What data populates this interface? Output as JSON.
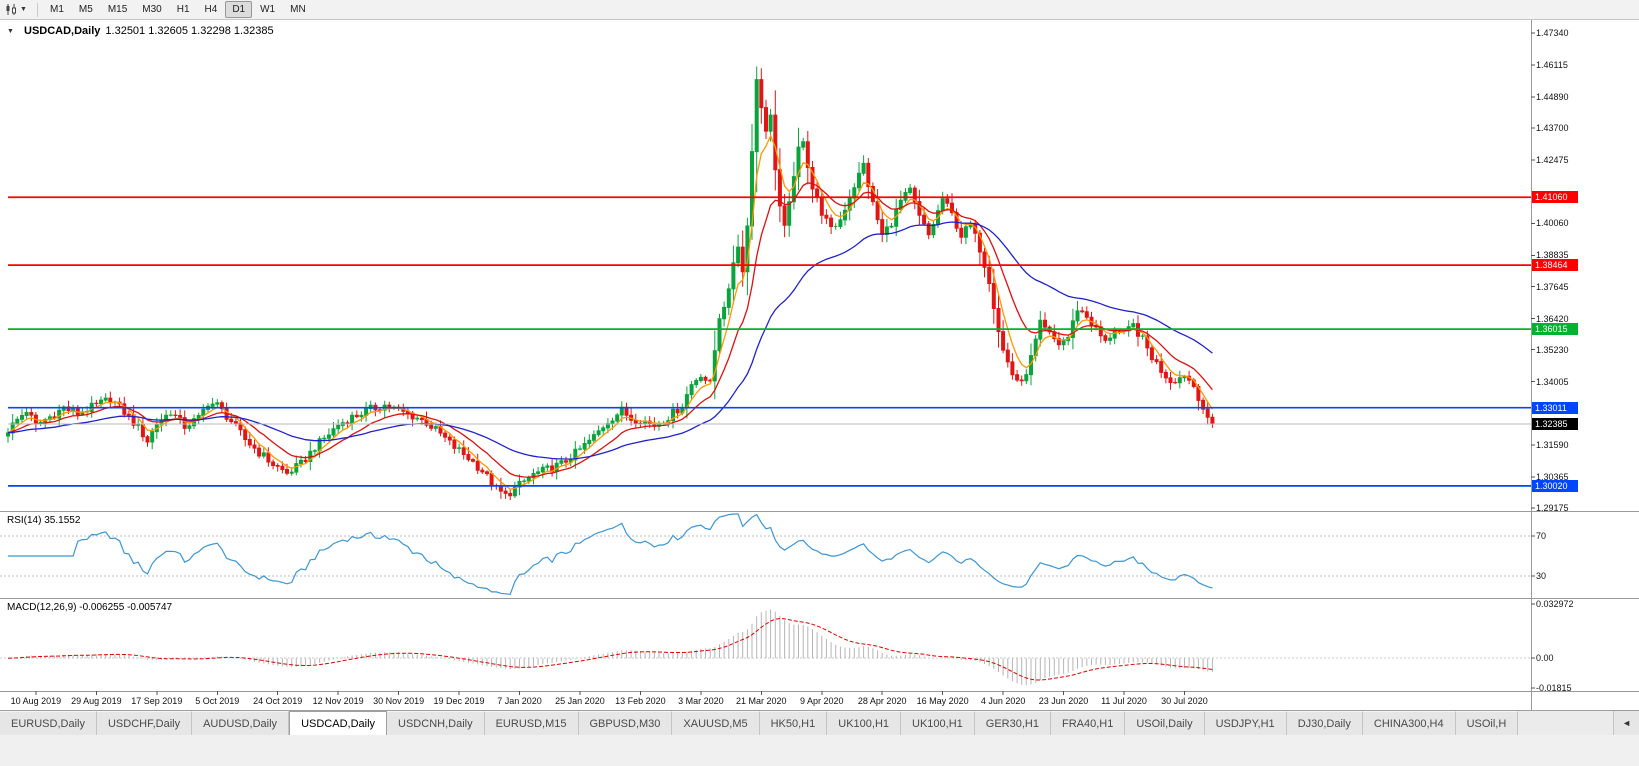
{
  "toolbar": {
    "dropdown_glyph": "▼",
    "timeframes": [
      {
        "label": "M1"
      },
      {
        "label": "M5"
      },
      {
        "label": "M15"
      },
      {
        "label": "M30"
      },
      {
        "label": "H1"
      },
      {
        "label": "H4"
      },
      {
        "label": "D1",
        "active": true
      },
      {
        "label": "W1"
      },
      {
        "label": "MN"
      }
    ]
  },
  "chart": {
    "collapse_icon": "▼",
    "symbol": "USDCAD,Daily",
    "ohlc": "1.32501 1.32605 1.32298 1.32385",
    "open": "1.32501",
    "high": "1.32605",
    "low": "1.32298",
    "close": "1.32385"
  },
  "indicators": {
    "rsi": {
      "name": "RSI(14)",
      "value": "35.1552",
      "levels": [
        {
          "text": "70",
          "value": 70
        },
        {
          "text": "30",
          "value": 30
        }
      ],
      "line_color": "#3c96d2"
    },
    "macd": {
      "name": "MACD(12,26,9)",
      "values": "-0.006255 -0.005747",
      "axis_labels": [
        {
          "text": "0.032972",
          "value": 0.032972
        },
        {
          "text": "0.00",
          "value": 0
        },
        {
          "text": "-0.01815",
          "value": -0.01815
        }
      ],
      "histogram_color": "#b5b5b5",
      "signal_color": "#e00000"
    }
  },
  "price_axis": {
    "ticks": [
      {
        "text": "1.47340",
        "price": 1.4734
      },
      {
        "text": "1.46115",
        "price": 1.46115
      },
      {
        "text": "1.44890",
        "price": 1.4489
      },
      {
        "text": "1.43700",
        "price": 1.437
      },
      {
        "text": "1.42475",
        "price": 1.42475
      },
      {
        "text": "1.40060",
        "price": 1.4006
      },
      {
        "text": "1.38835",
        "price": 1.38835
      },
      {
        "text": "1.37645",
        "price": 1.37645
      },
      {
        "text": "1.36420",
        "price": 1.3642
      },
      {
        "text": "1.35230",
        "price": 1.3523
      },
      {
        "text": "1.34005",
        "price": 1.34005
      },
      {
        "text": "1.31590",
        "price": 1.3159
      },
      {
        "text": "1.30365",
        "price": 1.30365
      },
      {
        "text": "1.29175",
        "price": 1.29175
      }
    ]
  },
  "date_axis": {
    "labels": [
      {
        "text": "10 Aug 2019",
        "day": 6
      },
      {
        "text": "29 Aug 2019",
        "day": 19
      },
      {
        "text": "17 Sep 2019",
        "day": 32
      },
      {
        "text": "5 Oct 2019",
        "day": 45
      },
      {
        "text": "24 Oct 2019",
        "day": 58
      },
      {
        "text": "12 Nov 2019",
        "day": 71
      },
      {
        "text": "30 Nov 2019",
        "day": 84
      },
      {
        "text": "19 Dec 2019",
        "day": 97
      },
      {
        "text": "7 Jan 2020",
        "day": 110
      },
      {
        "text": "25 Jan 2020",
        "day": 123
      },
      {
        "text": "13 Feb 2020",
        "day": 136
      },
      {
        "text": "3 Mar 2020",
        "day": 149
      },
      {
        "text": "21 Mar 2020",
        "day": 162
      },
      {
        "text": "9 Apr 2020",
        "day": 175
      },
      {
        "text": "28 Apr 2020",
        "day": 188
      },
      {
        "text": "16 May 2020",
        "day": 201
      },
      {
        "text": "4 Jun 2020",
        "day": 214
      },
      {
        "text": "23 Jun 2020",
        "day": 227
      },
      {
        "text": "11 Jul 2020",
        "day": 240
      },
      {
        "text": "30 Jul 2020",
        "day": 253
      }
    ]
  },
  "tabs": {
    "scroll_left_icon": "◄",
    "items": [
      {
        "label": "EURUSD,Daily"
      },
      {
        "label": "USDCHF,Daily"
      },
      {
        "label": "AUDUSD,Daily"
      },
      {
        "label": "USDCAD,Daily",
        "active": true
      },
      {
        "label": "USDCNH,Daily"
      },
      {
        "label": "EURUSD,M15"
      },
      {
        "label": "GBPUSD,M30"
      },
      {
        "label": "XAUUSD,M5"
      },
      {
        "label": "HK50,H1"
      },
      {
        "label": "UK100,H1"
      },
      {
        "label": "UK100,H1"
      },
      {
        "label": "GER30,H1"
      },
      {
        "label": "FRA40,H1"
      },
      {
        "label": "USOil,Daily"
      },
      {
        "label": "USDJPY,H1"
      },
      {
        "label": "DJ30,Daily"
      },
      {
        "label": "CHINA300,H4"
      },
      {
        "label": "USOil,H"
      }
    ]
  },
  "chart_data": {
    "type": "candlestick",
    "symbol": "USDCAD",
    "timeframe": "Daily",
    "x_range": [
      "Aug 2019",
      "Aug 2020"
    ],
    "y_range": [
      1.2898,
      1.4765
    ],
    "x_labels": [
      "10 Aug 2019",
      "29 Aug 2019",
      "17 Sep 2019",
      "5 Oct 2019",
      "24 Oct 2019",
      "12 Nov 2019",
      "30 Nov 2019",
      "19 Dec 2019",
      "7 Jan 2020",
      "25 Jan 2020",
      "13 Feb 2020",
      "3 Mar 2020",
      "21 Mar 2020",
      "9 Apr 2020",
      "28 Apr 2020",
      "16 May 2020",
      "4 Jun 2020",
      "23 Jun 2020",
      "11 Jul 2020",
      "30 Jul 2020"
    ],
    "y_ticks": [
      1.4734,
      1.46115,
      1.4489,
      1.437,
      1.42475,
      1.4006,
      1.38835,
      1.37645,
      1.3642,
      1.3523,
      1.34005,
      1.3159,
      1.30365,
      1.29175
    ],
    "candle_count": 260,
    "up_color": "#0aa33c",
    "down_color": "#e01616",
    "close_anchors": [
      [
        0,
        1.3215
      ],
      [
        2,
        1.3255
      ],
      [
        4,
        1.329
      ],
      [
        6,
        1.3235
      ],
      [
        9,
        1.3265
      ],
      [
        12,
        1.33
      ],
      [
        15,
        1.328
      ],
      [
        19,
        1.331
      ],
      [
        22,
        1.3335
      ],
      [
        25,
        1.3285
      ],
      [
        28,
        1.3225
      ],
      [
        30,
        1.3175
      ],
      [
        32,
        1.324
      ],
      [
        35,
        1.3285
      ],
      [
        38,
        1.323
      ],
      [
        41,
        1.326
      ],
      [
        43,
        1.332
      ],
      [
        45,
        1.331
      ],
      [
        48,
        1.325
      ],
      [
        51,
        1.318
      ],
      [
        54,
        1.313
      ],
      [
        57,
        1.3085
      ],
      [
        60,
        1.305
      ],
      [
        63,
        1.3085
      ],
      [
        66,
        1.315
      ],
      [
        69,
        1.32
      ],
      [
        71,
        1.3235
      ],
      [
        74,
        1.3265
      ],
      [
        78,
        1.3295
      ],
      [
        81,
        1.331
      ],
      [
        84,
        1.329
      ],
      [
        87,
        1.327
      ],
      [
        90,
        1.3245
      ],
      [
        93,
        1.32
      ],
      [
        96,
        1.315
      ],
      [
        99,
        1.311
      ],
      [
        102,
        1.306
      ],
      [
        105,
        1.299
      ],
      [
        107,
        1.2965
      ],
      [
        110,
        1.3005
      ],
      [
        113,
        1.3045
      ],
      [
        116,
        1.3065
      ],
      [
        119,
        1.3085
      ],
      [
        123,
        1.314
      ],
      [
        126,
        1.319
      ],
      [
        129,
        1.325
      ],
      [
        132,
        1.329
      ],
      [
        134,
        1.326
      ],
      [
        136,
        1.3255
      ],
      [
        139,
        1.3235
      ],
      [
        142,
        1.3265
      ],
      [
        145,
        1.331
      ],
      [
        147,
        1.339
      ],
      [
        149,
        1.343
      ],
      [
        151,
        1.339
      ],
      [
        153,
        1.365
      ],
      [
        155,
        1.374
      ],
      [
        156,
        1.386
      ],
      [
        157,
        1.3925
      ],
      [
        158,
        1.382
      ],
      [
        159,
        1.401
      ],
      [
        160,
        1.428
      ],
      [
        161,
        1.456
      ],
      [
        162,
        1.446
      ],
      [
        163,
        1.435
      ],
      [
        164,
        1.443
      ],
      [
        165,
        1.421
      ],
      [
        166,
        1.406
      ],
      [
        167,
        1.3985
      ],
      [
        168,
        1.41
      ],
      [
        169,
        1.417
      ],
      [
        170,
        1.429
      ],
      [
        171,
        1.433
      ],
      [
        172,
        1.423
      ],
      [
        173,
        1.414
      ],
      [
        175,
        1.405
      ],
      [
        177,
        1.398
      ],
      [
        179,
        1.402
      ],
      [
        181,
        1.411
      ],
      [
        183,
        1.419
      ],
      [
        184,
        1.423
      ],
      [
        186,
        1.408
      ],
      [
        188,
        1.396
      ],
      [
        190,
        1.401
      ],
      [
        192,
        1.409
      ],
      [
        194,
        1.413
      ],
      [
        196,
        1.403
      ],
      [
        198,
        1.396
      ],
      [
        200,
        1.405
      ],
      [
        201,
        1.41
      ],
      [
        203,
        1.404
      ],
      [
        205,
        1.396
      ],
      [
        207,
        1.4
      ],
      [
        209,
        1.391
      ],
      [
        211,
        1.379
      ],
      [
        213,
        1.36
      ],
      [
        214,
        1.352
      ],
      [
        216,
        1.343
      ],
      [
        218,
        1.339
      ],
      [
        220,
        1.349
      ],
      [
        222,
        1.362
      ],
      [
        224,
        1.358
      ],
      [
        226,
        1.3545
      ],
      [
        228,
        1.357
      ],
      [
        230,
        1.368
      ],
      [
        232,
        1.365
      ],
      [
        234,
        1.36
      ],
      [
        236,
        1.355
      ],
      [
        238,
        1.36
      ],
      [
        240,
        1.358
      ],
      [
        242,
        1.3615
      ],
      [
        244,
        1.356
      ],
      [
        246,
        1.3495
      ],
      [
        248,
        1.3445
      ],
      [
        250,
        1.3405
      ],
      [
        252,
        1.3415
      ],
      [
        253,
        1.343
      ],
      [
        255,
        1.3385
      ],
      [
        256,
        1.3345
      ],
      [
        257,
        1.33
      ],
      [
        258,
        1.3262
      ],
      [
        259,
        1.3239
      ]
    ],
    "hlines": [
      {
        "price": 1.4106,
        "color": "#ff0000",
        "label": "1.41060"
      },
      {
        "price": 1.38464,
        "color": "#ff0000",
        "label": "1.38464"
      },
      {
        "price": 1.36015,
        "color": "#00b22d",
        "label": "1.36015"
      },
      {
        "price": 1.33011,
        "color": "#0045ff",
        "label": "1.33011"
      },
      {
        "price": 1.3002,
        "color": "#0045ff",
        "label": "1.30020"
      }
    ],
    "current_price": 1.32385,
    "current_price_label": "1.32385",
    "current_price_color": "#000000",
    "moving_averages": [
      {
        "type": "EMA",
        "period": 5,
        "color": "#ff9800"
      },
      {
        "type": "EMA",
        "period": 13,
        "color": "#dc1010"
      },
      {
        "type": "EMA",
        "period": 40,
        "color": "#2222cc"
      }
    ],
    "rsi": {
      "period": 14,
      "last": 35.1552,
      "levels": [
        70,
        30
      ]
    },
    "macd": {
      "fast": 12,
      "slow": 26,
      "signal": 9,
      "last_main": -0.006255,
      "last_signal": -0.005747,
      "axis_max": 0.032972,
      "axis_min": -0.01815
    }
  }
}
